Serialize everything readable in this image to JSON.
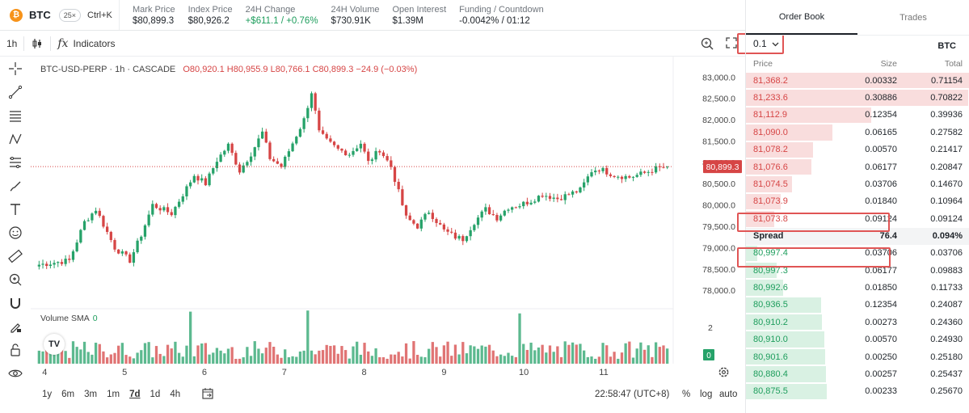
{
  "ticker": {
    "symbol": "BTC",
    "leverage": "25×",
    "shortcut": "Ctrl+K",
    "stats": [
      {
        "label": "Mark Price",
        "value": "$80,899.3",
        "tone": "neutral"
      },
      {
        "label": "Index Price",
        "value": "$80,926.2",
        "tone": "neutral"
      },
      {
        "label": "24H Change",
        "value": "+$611.1 / +0.76%",
        "tone": "green"
      },
      {
        "label": "24H Volume",
        "value": "$730.91K",
        "tone": "neutral"
      },
      {
        "label": "Open Interest",
        "value": "$1.39M",
        "tone": "neutral"
      },
      {
        "label": "Funding / Countdown",
        "value": "-0.0042% / 01:12",
        "tone": "neutral"
      }
    ]
  },
  "toolbar": {
    "interval": "1h",
    "indicators_label": "Indicators"
  },
  "chart": {
    "legend_title": "BTC-USD-PERP · 1h · CASCADE",
    "ohlc": "O80,920.1  H80,955.9  L80,766.1  C80,899.3  −24.9 (−0.03%)",
    "last_price_label": "80,899.3",
    "last_price": 80899.3,
    "volume_label": "Volume SMA",
    "volume_value": "0",
    "volume_axis_top": "2",
    "volume_axis_badge": "0",
    "y_ticks": [
      "83,000.0",
      "82,500.0",
      "82,000.0",
      "81,500.0",
      "81,000.0",
      "80,500.0",
      "80,000.0",
      "79,500.0",
      "79,000.0",
      "78,500.0",
      "78,000.0"
    ],
    "y_tick_values": [
      83000,
      82500,
      82000,
      81500,
      81000,
      80500,
      80000,
      79500,
      79000,
      78500,
      78000
    ],
    "x_ticks": [
      "4",
      "5",
      "6",
      "7",
      "8",
      "9",
      "10",
      "11"
    ],
    "ranges": [
      "1y",
      "6m",
      "3m",
      "1m",
      "7d",
      "1d",
      "4h"
    ],
    "active_range": "7d",
    "clock": "22:58:47 (UTC+8)",
    "scale_options": [
      "%",
      "log",
      "auto"
    ],
    "colors": {
      "up": "#26a269",
      "down": "#d64545",
      "last": "#d64545"
    }
  },
  "chart_data": {
    "type": "candlestick",
    "x_ticks": [
      "4",
      "5",
      "6",
      "7",
      "8",
      "9",
      "10",
      "11"
    ],
    "ylim": [
      77700,
      83100
    ],
    "last_close": 80899.3,
    "close_waypoints": [
      [
        0,
        78600
      ],
      [
        8,
        78700
      ],
      [
        12,
        79600
      ],
      [
        15,
        79900
      ],
      [
        20,
        79000
      ],
      [
        24,
        78700
      ],
      [
        27,
        79300
      ],
      [
        30,
        80000
      ],
      [
        35,
        79800
      ],
      [
        38,
        80250
      ],
      [
        41,
        80700
      ],
      [
        44,
        80500
      ],
      [
        47,
        81050
      ],
      [
        50,
        81400
      ],
      [
        53,
        80800
      ],
      [
        56,
        81200
      ],
      [
        59,
        81700
      ],
      [
        61,
        81100
      ],
      [
        64,
        80900
      ],
      [
        67,
        81450
      ],
      [
        70,
        82000
      ],
      [
        72,
        82650
      ],
      [
        74,
        81700
      ],
      [
        76,
        81500
      ],
      [
        79,
        81300
      ],
      [
        82,
        81200
      ],
      [
        85,
        81450
      ],
      [
        87,
        81000
      ],
      [
        90,
        81300
      ],
      [
        93,
        80900
      ],
      [
        95,
        80300
      ],
      [
        97,
        79700
      ],
      [
        100,
        79500
      ],
      [
        103,
        79850
      ],
      [
        107,
        79400
      ],
      [
        110,
        79250
      ],
      [
        112,
        79200
      ],
      [
        115,
        79600
      ],
      [
        118,
        79900
      ],
      [
        121,
        79700
      ],
      [
        124,
        79950
      ],
      [
        127,
        80000
      ],
      [
        130,
        80100
      ],
      [
        133,
        80250
      ],
      [
        137,
        80150
      ],
      [
        140,
        80250
      ],
      [
        143,
        80350
      ],
      [
        146,
        80800
      ],
      [
        148,
        80850
      ],
      [
        152,
        80700
      ],
      [
        156,
        80650
      ],
      [
        160,
        80750
      ],
      [
        163,
        80850
      ],
      [
        166,
        80899.3
      ]
    ]
  },
  "orderbook": {
    "tabs": [
      "Order Book",
      "Trades"
    ],
    "active_tab": "Order Book",
    "precision": "0.1",
    "unit": "BTC",
    "headers": [
      "Price",
      "Size",
      "Total"
    ],
    "asks": [
      {
        "price": "81,368.2",
        "size": "0.00332",
        "total": "0.71154",
        "depth": 1.0
      },
      {
        "price": "81,233.6",
        "size": "0.30886",
        "total": "0.70822",
        "depth": 0.995
      },
      {
        "price": "81,112.9",
        "size": "0.12354",
        "total": "0.39936",
        "depth": 0.561
      },
      {
        "price": "81,090.0",
        "size": "0.06165",
        "total": "0.27582",
        "depth": 0.388
      },
      {
        "price": "81,078.2",
        "size": "0.00570",
        "total": "0.21417",
        "depth": 0.301
      },
      {
        "price": "81,076.6",
        "size": "0.06177",
        "total": "0.20847",
        "depth": 0.293
      },
      {
        "price": "81,074.5",
        "size": "0.03706",
        "total": "0.14670",
        "depth": 0.206
      },
      {
        "price": "81,073.9",
        "size": "0.01840",
        "total": "0.10964",
        "depth": 0.154
      },
      {
        "price": "81,073.8",
        "size": "0.09124",
        "total": "0.09124",
        "depth": 0.128
      }
    ],
    "spread": {
      "label": "Spread",
      "value": "76.4",
      "percent": "0.094%"
    },
    "bids": [
      {
        "price": "80,997.4",
        "size": "0.03706",
        "total": "0.03706",
        "depth": 0.052
      },
      {
        "price": "80,997.3",
        "size": "0.06177",
        "total": "0.09883",
        "depth": 0.139
      },
      {
        "price": "80,992.6",
        "size": "0.01850",
        "total": "0.11733",
        "depth": 0.165
      },
      {
        "price": "80,936.5",
        "size": "0.12354",
        "total": "0.24087",
        "depth": 0.338
      },
      {
        "price": "80,910.2",
        "size": "0.00273",
        "total": "0.24360",
        "depth": 0.342
      },
      {
        "price": "80,910.0",
        "size": "0.00570",
        "total": "0.24930",
        "depth": 0.35
      },
      {
        "price": "80,901.6",
        "size": "0.00250",
        "total": "0.25180",
        "depth": 0.354
      },
      {
        "price": "80,880.4",
        "size": "0.00257",
        "total": "0.25437",
        "depth": 0.357
      },
      {
        "price": "80,875.5",
        "size": "0.00233",
        "total": "0.25670",
        "depth": 0.361
      }
    ]
  }
}
